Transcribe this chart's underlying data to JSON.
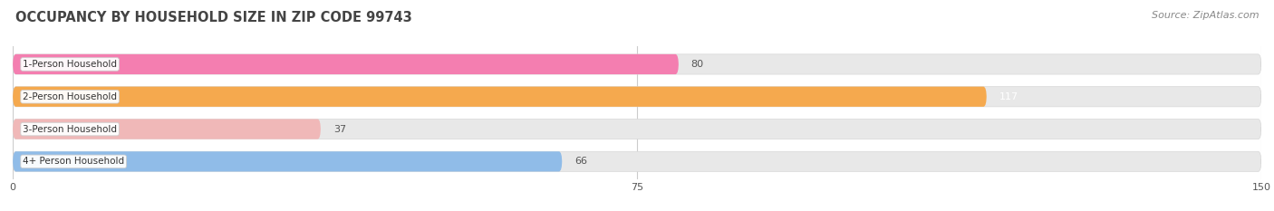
{
  "title": "OCCUPANCY BY HOUSEHOLD SIZE IN ZIP CODE 99743",
  "source": "Source: ZipAtlas.com",
  "categories": [
    "1-Person Household",
    "2-Person Household",
    "3-Person Household",
    "4+ Person Household"
  ],
  "values": [
    80,
    117,
    37,
    66
  ],
  "bar_colors": [
    "#f47eb0",
    "#f5a94e",
    "#f0b8b8",
    "#90bce8"
  ],
  "label_colors": [
    "#555555",
    "#ffffff",
    "#555555",
    "#555555"
  ],
  "xlim": [
    0,
    150
  ],
  "xticks": [
    0,
    75,
    150
  ],
  "bar_height": 0.62,
  "figsize": [
    14.06,
    2.33
  ],
  "dpi": 100,
  "bg_color": "#ffffff",
  "bar_bg_color": "#e8e8e8",
  "title_fontsize": 10.5,
  "source_fontsize": 8,
  "label_fontsize": 8,
  "tick_fontsize": 8,
  "category_fontsize": 7.5
}
